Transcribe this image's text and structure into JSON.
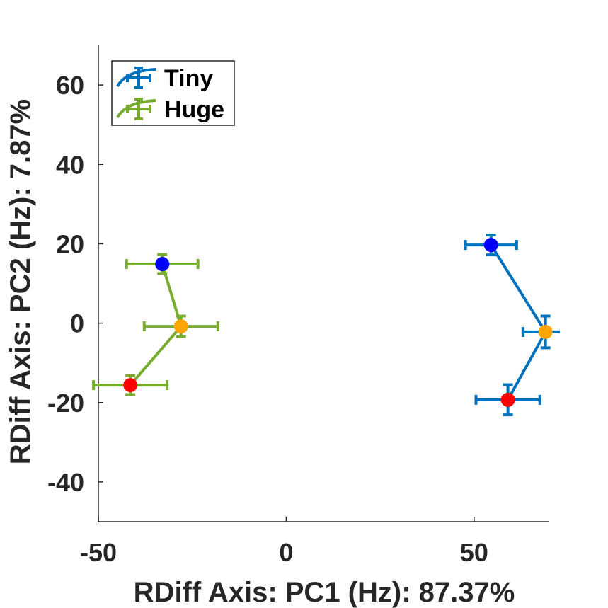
{
  "chart_data": {
    "type": "scatter",
    "title": "",
    "xlabel": "RDiff Axis: PC1 (Hz): 87.37%",
    "ylabel": "RDiff Axis: PC2 (Hz): 7.87%",
    "xlim": [
      -50,
      70
    ],
    "ylim": [
      -50,
      70
    ],
    "xticks": [
      -50,
      0,
      50
    ],
    "yticks": [
      -40,
      -20,
      0,
      20,
      40,
      60
    ],
    "xtick_labels": [
      "-50",
      "0",
      "50"
    ],
    "ytick_labels": [
      "-40",
      "-20",
      "0",
      "20",
      "40",
      "60"
    ],
    "grid": false,
    "legend": {
      "placement": "top-left"
    },
    "series": [
      {
        "name": "Tiny",
        "color": "#0072BD",
        "points": [
          {
            "x": 54.5,
            "y": 19.7,
            "xerr": 6.8,
            "yerr": 2.5,
            "marker_color": "#0000FF"
          },
          {
            "x": 69.0,
            "y": -2.2,
            "xerr": 6.0,
            "yerr": 4.0,
            "marker_color": "#FFA500"
          },
          {
            "x": 59.0,
            "y": -19.3,
            "xerr": 8.5,
            "yerr": 3.8,
            "marker_color": "#FF0000"
          }
        ]
      },
      {
        "name": "Huge",
        "color": "#77AC30",
        "points": [
          {
            "x": -33.0,
            "y": 14.9,
            "xerr": 9.5,
            "yerr": 2.4,
            "marker_color": "#0000FF"
          },
          {
            "x": -28.0,
            "y": -0.8,
            "xerr": 9.8,
            "yerr": 2.6,
            "marker_color": "#FFA500"
          },
          {
            "x": -41.5,
            "y": -15.6,
            "xerr": 9.8,
            "yerr": 2.4,
            "marker_color": "#FF0000"
          }
        ]
      }
    ]
  }
}
